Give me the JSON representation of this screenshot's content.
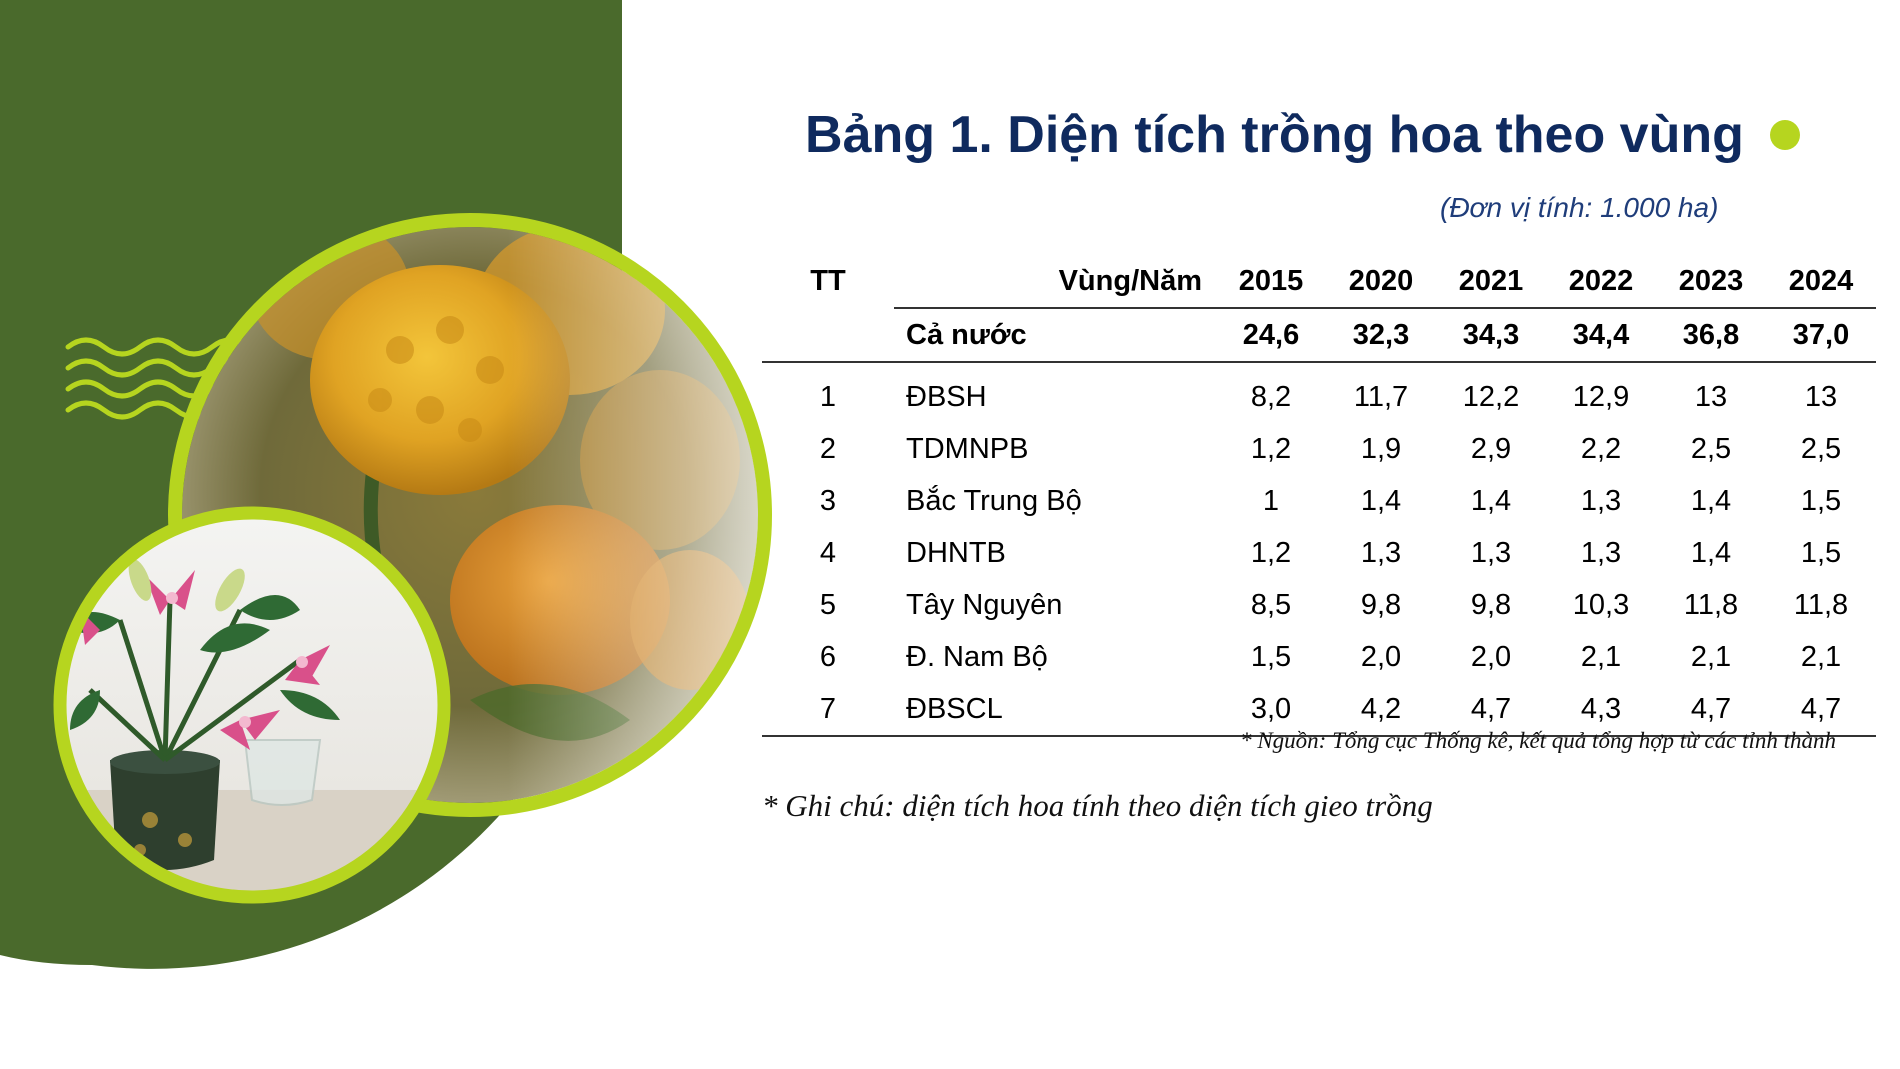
{
  "title": "Bảng 1. Diện tích trồng hoa theo vùng",
  "unit": "(Đơn vị tính: 1.000 ha)",
  "table": {
    "header": {
      "tt": "TT",
      "region": "Vùng/Năm",
      "years": [
        "2015",
        "2020",
        "2021",
        "2022",
        "2023",
        "2024"
      ]
    },
    "total": {
      "label": "Cả nước",
      "values": [
        "24,6",
        "32,3",
        "34,3",
        "34,4",
        "36,8",
        "37,0"
      ]
    },
    "rows": [
      {
        "tt": "1",
        "region": "ĐBSH",
        "values": [
          "8,2",
          "11,7",
          "12,2",
          "12,9",
          "13",
          "13"
        ]
      },
      {
        "tt": "2",
        "region": "TDMNPB",
        "values": [
          "1,2",
          "1,9",
          "2,9",
          "2,2",
          "2,5",
          "2,5"
        ]
      },
      {
        "tt": "3",
        "region": "Bắc Trung Bộ",
        "values": [
          "1",
          "1,4",
          "1,4",
          "1,3",
          "1,4",
          "1,5"
        ]
      },
      {
        "tt": "4",
        "region": "DHNTB",
        "values": [
          "1,2",
          "1,3",
          "1,3",
          "1,3",
          "1,4",
          "1,5"
        ]
      },
      {
        "tt": "5",
        "region": "Tây Nguyên",
        "values": [
          "8,5",
          "9,8",
          "9,8",
          "10,3",
          "11,8",
          "11,8"
        ]
      },
      {
        "tt": "6",
        "region": "Đ. Nam Bộ",
        "values": [
          "1,5",
          "2,0",
          "2,0",
          "2,1",
          "2,1",
          "2,1"
        ]
      },
      {
        "tt": "7",
        "region": "ĐBSCL",
        "values": [
          "3,0",
          "4,2",
          "4,7",
          "4,3",
          "4,7",
          "4,7"
        ]
      }
    ]
  },
  "source": "* Nguồn: Tổng cục Thống kê, kết quả tổng hợp từ các tỉnh thành",
  "note": "* Ghi chú: diện tích hoa tính theo diện tích gieo trồng",
  "colors": {
    "panel_green": "#4a6a2c",
    "accent_lime": "#b6d51f",
    "title_navy": "#0f2a5e"
  },
  "images": {
    "large_circle": "marigold-photo",
    "small_circle": "lily-vase-photo",
    "decoration": "wave-lines-icon"
  }
}
